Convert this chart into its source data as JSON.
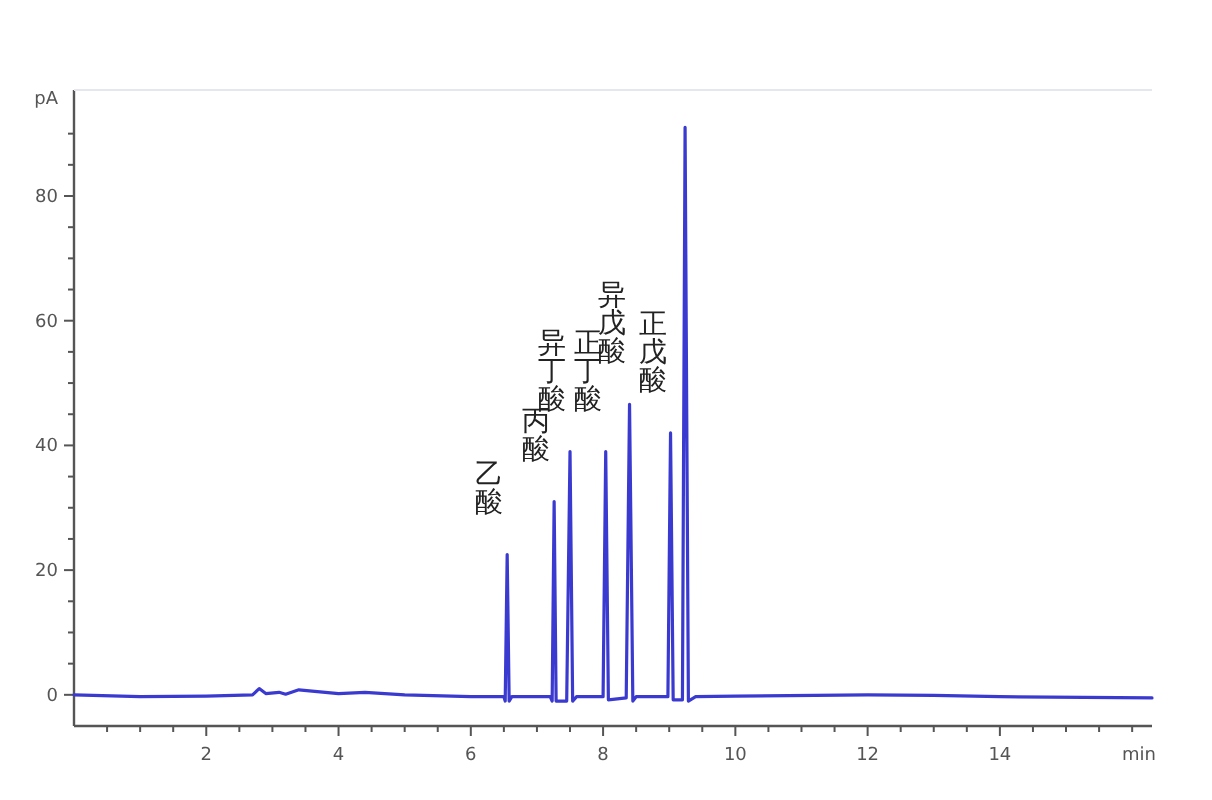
{
  "chart_data": {
    "type": "line",
    "xlabel": "min",
    "ylabel": "pA",
    "xlim": [
      0,
      16.3
    ],
    "ylim": [
      -5,
      97
    ],
    "xticks": [
      {
        "value": 0.5,
        "label": null
      },
      {
        "value": 1,
        "label": null
      },
      {
        "value": 1.5,
        "label": null
      },
      2,
      {
        "value": 2.5,
        "label": null
      },
      {
        "value": 3,
        "label": null
      },
      {
        "value": 3.5,
        "label": null
      },
      4,
      {
        "value": 4.5,
        "label": null
      },
      {
        "value": 5,
        "label": null
      },
      {
        "value": 5.5,
        "label": null
      },
      6,
      {
        "value": 6.5,
        "label": null
      },
      {
        "value": 7,
        "label": null
      },
      {
        "value": 7.5,
        "label": null
      },
      8,
      {
        "value": 8.5,
        "label": null
      },
      {
        "value": 9,
        "label": null
      },
      {
        "value": 9.5,
        "label": null
      },
      10,
      {
        "value": 10.5,
        "label": null
      },
      {
        "value": 11,
        "label": null
      },
      {
        "value": 11.5,
        "label": null
      },
      12,
      {
        "value": 12.5,
        "label": null
      },
      {
        "value": 13,
        "label": null
      },
      {
        "value": 13.5,
        "label": null
      },
      14,
      {
        "value": 14.5,
        "label": null
      },
      {
        "value": 15,
        "label": null
      },
      {
        "value": 15.5,
        "label": null
      },
      {
        "value": 16,
        "label": null
      }
    ],
    "yticks": [
      0,
      {
        "value": 5,
        "label": null
      },
      {
        "value": 10,
        "label": null
      },
      {
        "value": 15,
        "label": null
      },
      20,
      {
        "value": 25,
        "label": null
      },
      {
        "value": 30,
        "label": null
      },
      {
        "value": 35,
        "label": null
      },
      40,
      {
        "value": 45,
        "label": null
      },
      {
        "value": 50,
        "label": null
      },
      {
        "value": 55,
        "label": null
      },
      60,
      {
        "value": 65,
        "label": null
      },
      {
        "value": 70,
        "label": null
      },
      {
        "value": 75,
        "label": null
      },
      80,
      {
        "value": 85,
        "label": null
      },
      {
        "value": 90,
        "label": null
      }
    ],
    "grid": false,
    "marker": "none",
    "line_style": "solid",
    "series": [
      {
        "color": "#3a3ad0",
        "x": [
          0,
          1,
          2,
          2.7,
          2.8,
          2.9,
          3.1,
          3.2,
          3.4,
          3.6,
          4.0,
          4.4,
          5,
          6,
          6.5,
          6.52,
          6.55,
          6.58,
          6.62,
          7.2,
          7.23,
          7.26,
          7.29,
          7.45,
          7.5,
          7.54,
          7.6,
          8.0,
          8.04,
          8.08,
          8.35,
          8.4,
          8.45,
          8.5,
          8.98,
          9.02,
          9.06,
          9.2,
          9.24,
          9.29,
          9.4,
          10,
          12,
          13,
          14,
          16.3
        ],
        "values": [
          0,
          -0.3,
          -0.2,
          0,
          1.0,
          0.2,
          0.4,
          0.1,
          0.8,
          0.6,
          0.2,
          0.4,
          0,
          -0.3,
          -0.3,
          -1,
          22.5,
          -1,
          -0.3,
          -0.3,
          -1,
          31,
          -1,
          -1,
          39,
          -1,
          -0.3,
          -0.3,
          39,
          -0.8,
          -0.5,
          46.6,
          -1,
          -0.3,
          -0.3,
          42,
          -0.8,
          -0.8,
          91,
          -1,
          -0.3,
          -0.2,
          0,
          -0.1,
          -0.3,
          -0.5
        ]
      }
    ],
    "annotations": [
      {
        "text": "乙酸",
        "x": 6.55,
        "y": 22.5
      },
      {
        "text": "丙酸",
        "x": 7.26,
        "y": 31
      },
      {
        "text": "异丁酸",
        "x": 7.5,
        "y": 39
      },
      {
        "text": "正丁酸",
        "x": 8.04,
        "y": 39
      },
      {
        "text": "异戊酸",
        "x": 8.4,
        "y": 46.6
      },
      {
        "text": "正戊酸",
        "x": 9.02,
        "y": 42
      }
    ]
  }
}
